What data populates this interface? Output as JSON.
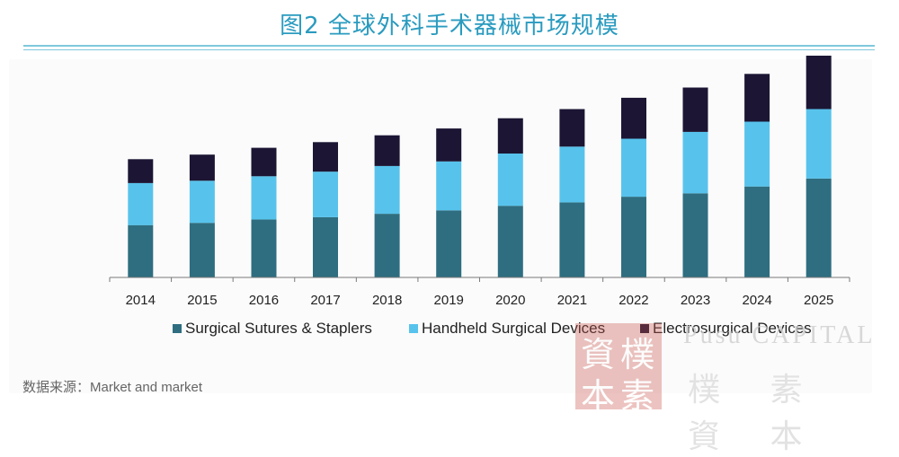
{
  "title": "图2 全球外科手术器械市场规模",
  "source": "数据来源：Market and market",
  "watermark": {
    "seal_chars": [
      "資",
      "樸",
      "本",
      "素"
    ],
    "english": "Pusu CAPITAL",
    "chinese": "樸 素 資 本"
  },
  "colors": {
    "title": "#2a9bbf",
    "series": [
      "#2e6e80",
      "#57c3ec",
      "#1c1634"
    ]
  },
  "chart_data": {
    "type": "bar",
    "stacked": true,
    "title": "图2 全球外科手术器械市场规模",
    "xlabel": "",
    "ylabel": "",
    "categories": [
      "2014",
      "2015",
      "2016",
      "2017",
      "2018",
      "2019",
      "2020",
      "2021",
      "2022",
      "2023",
      "2024",
      "2025"
    ],
    "series": [
      {
        "name": "Surgical Sutures & Staplers",
        "values": [
          4.6,
          4.8,
          5.1,
          5.3,
          5.6,
          5.9,
          6.3,
          6.6,
          7.1,
          7.4,
          8.0,
          8.7
        ]
      },
      {
        "name": "Handheld Surgical Devices",
        "values": [
          3.7,
          3.7,
          3.8,
          4.0,
          4.2,
          4.3,
          4.6,
          4.9,
          5.1,
          5.4,
          5.7,
          6.1
        ]
      },
      {
        "name": "Electrosurgical Devices",
        "values": [
          2.1,
          2.3,
          2.5,
          2.6,
          2.7,
          2.9,
          3.1,
          3.3,
          3.6,
          3.9,
          4.2,
          4.7
        ]
      }
    ],
    "ylim": [
      0,
      19.5
    ],
    "grid": false,
    "legend": "bottom"
  }
}
